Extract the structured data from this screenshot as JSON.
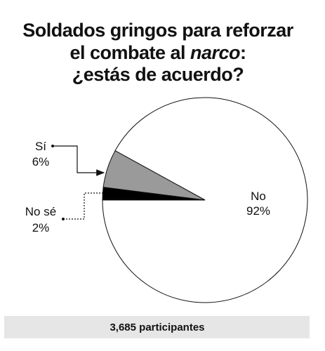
{
  "chart_data": {
    "type": "pie",
    "title": [
      "Soldados gringos para reforzar",
      "el combate al ",
      "narco",
      ":",
      "¿estás de acuerdo?"
    ],
    "categories": [
      "No",
      "Sí",
      "No sé"
    ],
    "values": [
      92,
      6,
      2
    ],
    "value_labels": [
      "92%",
      "6%",
      "2%"
    ],
    "colors": [
      "#ffffff",
      "#9a9a9a",
      "#000000"
    ],
    "footer": "3,685 participantes"
  }
}
